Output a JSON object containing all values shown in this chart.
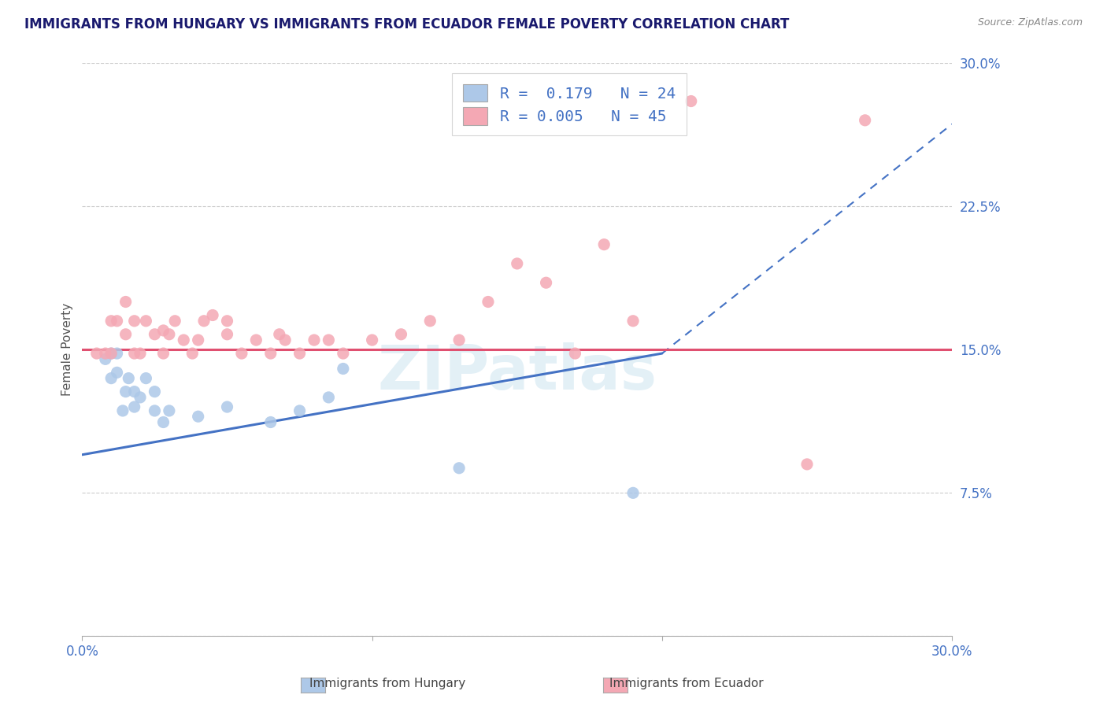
{
  "title": "IMMIGRANTS FROM HUNGARY VS IMMIGRANTS FROM ECUADOR FEMALE POVERTY CORRELATION CHART",
  "source": "Source: ZipAtlas.com",
  "ylabel": "Female Poverty",
  "y_ticks": [
    0.0,
    0.075,
    0.15,
    0.225,
    0.3
  ],
  "y_tick_labels": [
    "",
    "7.5%",
    "15.0%",
    "22.5%",
    "30.0%"
  ],
  "xlim": [
    0.0,
    0.3
  ],
  "ylim": [
    0.0,
    0.3
  ],
  "hungary_R": 0.179,
  "hungary_N": 24,
  "ecuador_R": 0.005,
  "ecuador_N": 45,
  "hungary_color": "#adc8e8",
  "ecuador_color": "#f4a8b4",
  "hungary_line_color": "#4472c4",
  "ecuador_line_color": "#e05070",
  "legend_hungary": "Immigrants from Hungary",
  "legend_ecuador": "Immigrants from Ecuador",
  "hungary_x": [
    0.008,
    0.01,
    0.01,
    0.012,
    0.012,
    0.014,
    0.015,
    0.016,
    0.018,
    0.018,
    0.02,
    0.022,
    0.025,
    0.025,
    0.028,
    0.03,
    0.04,
    0.05,
    0.065,
    0.075,
    0.085,
    0.09,
    0.13,
    0.19
  ],
  "hungary_y": [
    0.145,
    0.135,
    0.148,
    0.138,
    0.148,
    0.118,
    0.128,
    0.135,
    0.12,
    0.128,
    0.125,
    0.135,
    0.128,
    0.118,
    0.112,
    0.118,
    0.115,
    0.12,
    0.112,
    0.118,
    0.125,
    0.14,
    0.088,
    0.075
  ],
  "ecuador_x": [
    0.005,
    0.008,
    0.01,
    0.01,
    0.012,
    0.015,
    0.015,
    0.018,
    0.018,
    0.02,
    0.022,
    0.025,
    0.028,
    0.028,
    0.03,
    0.032,
    0.035,
    0.038,
    0.04,
    0.042,
    0.045,
    0.05,
    0.05,
    0.055,
    0.06,
    0.065,
    0.068,
    0.07,
    0.075,
    0.08,
    0.085,
    0.09,
    0.1,
    0.11,
    0.12,
    0.13,
    0.14,
    0.15,
    0.16,
    0.17,
    0.18,
    0.19,
    0.21,
    0.25,
    0.27
  ],
  "ecuador_y": [
    0.148,
    0.148,
    0.165,
    0.148,
    0.165,
    0.175,
    0.158,
    0.165,
    0.148,
    0.148,
    0.165,
    0.158,
    0.148,
    0.16,
    0.158,
    0.165,
    0.155,
    0.148,
    0.155,
    0.165,
    0.168,
    0.158,
    0.165,
    0.148,
    0.155,
    0.148,
    0.158,
    0.155,
    0.148,
    0.155,
    0.155,
    0.148,
    0.155,
    0.158,
    0.165,
    0.155,
    0.175,
    0.195,
    0.185,
    0.148,
    0.205,
    0.165,
    0.28,
    0.09,
    0.27
  ],
  "hungary_line_x0": 0.0,
  "hungary_line_y0": 0.095,
  "hungary_line_x1": 0.2,
  "hungary_line_y1": 0.148,
  "hungary_line_xdash": 0.2,
  "hungary_line_ydash": 0.148,
  "hungary_line_xend": 0.3,
  "hungary_line_yend": 0.268,
  "ecuador_line_y": 0.15
}
